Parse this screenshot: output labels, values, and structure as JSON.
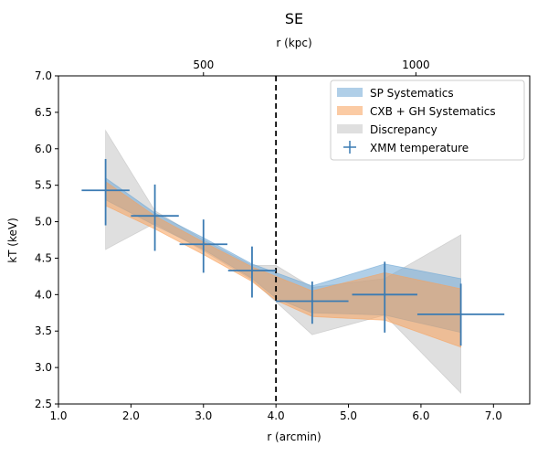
{
  "chart_data": {
    "type": "line",
    "title": "SE",
    "xlabel": "r (arcmin)",
    "ylabel": "kT (keV)",
    "top_xlabel": "r (kpc)",
    "xlim": [
      1.0,
      7.5
    ],
    "ylim": [
      2.5,
      7.0
    ],
    "x_ticks": [
      1.0,
      2.0,
      3.0,
      4.0,
      5.0,
      6.0,
      7.0
    ],
    "x_tick_labels": [
      "1.0",
      "2.0",
      "3.0",
      "4.0",
      "5.0",
      "6.0",
      "7.0"
    ],
    "y_ticks": [
      2.5,
      3.0,
      3.5,
      4.0,
      4.5,
      5.0,
      5.5,
      6.0,
      6.5,
      7.0
    ],
    "y_tick_labels": [
      "2.5",
      "3.0",
      "3.5",
      "4.0",
      "4.5",
      "5.0",
      "5.5",
      "6.0",
      "6.5",
      "7.0"
    ],
    "top_x_ticks_arcmin": [
      3.0,
      5.93
    ],
    "top_x_tick_labels": [
      "500",
      "1000"
    ],
    "vline_x": 4.0,
    "legend_position": "top-right",
    "series": [
      {
        "name": "SP Systematics",
        "kind": "band",
        "color": "#6fa8d6",
        "x": [
          1.65,
          2.33,
          3.0,
          3.67,
          4.0,
          4.5,
          5.5,
          6.55
        ],
        "lower": [
          5.3,
          4.95,
          4.62,
          4.22,
          3.95,
          3.75,
          3.72,
          3.48
        ],
        "upper": [
          5.6,
          5.12,
          4.78,
          4.42,
          4.3,
          4.12,
          4.42,
          4.22
        ]
      },
      {
        "name": "CXB + GH Systematics",
        "kind": "band",
        "color": "#f8a05a",
        "x": [
          1.65,
          2.33,
          3.0,
          3.67,
          4.0,
          4.5,
          5.5,
          6.55
        ],
        "lower": [
          5.22,
          4.9,
          4.55,
          4.18,
          3.92,
          3.7,
          3.65,
          3.28
        ],
        "upper": [
          5.55,
          5.08,
          4.72,
          4.38,
          4.25,
          4.05,
          4.3,
          4.08
        ]
      },
      {
        "name": "Discrepancy",
        "kind": "band",
        "color": "#bfbfbf",
        "x": [
          1.65,
          2.33,
          3.0,
          3.67,
          4.0,
          4.5,
          5.5,
          6.55
        ],
        "lower": [
          4.62,
          4.98,
          4.6,
          4.2,
          3.9,
          3.45,
          3.72,
          2.65
        ],
        "upper": [
          6.25,
          5.15,
          4.75,
          4.4,
          4.4,
          4.1,
          4.22,
          4.82
        ]
      },
      {
        "name": "XMM temperature",
        "kind": "errorbar",
        "color": "#3b7bb3",
        "x": [
          1.65,
          2.33,
          3.0,
          3.67,
          4.5,
          5.5,
          6.55
        ],
        "xerr": [
          0.33,
          0.33,
          0.33,
          0.33,
          0.5,
          0.45,
          0.6
        ],
        "y": [
          5.43,
          5.08,
          4.69,
          4.33,
          3.91,
          4.0,
          3.73
        ],
        "yerr_low": [
          0.48,
          0.48,
          0.39,
          0.37,
          0.31,
          0.52,
          0.43
        ],
        "yerr_high": [
          0.43,
          0.43,
          0.34,
          0.33,
          0.27,
          0.45,
          0.42
        ]
      }
    ]
  }
}
